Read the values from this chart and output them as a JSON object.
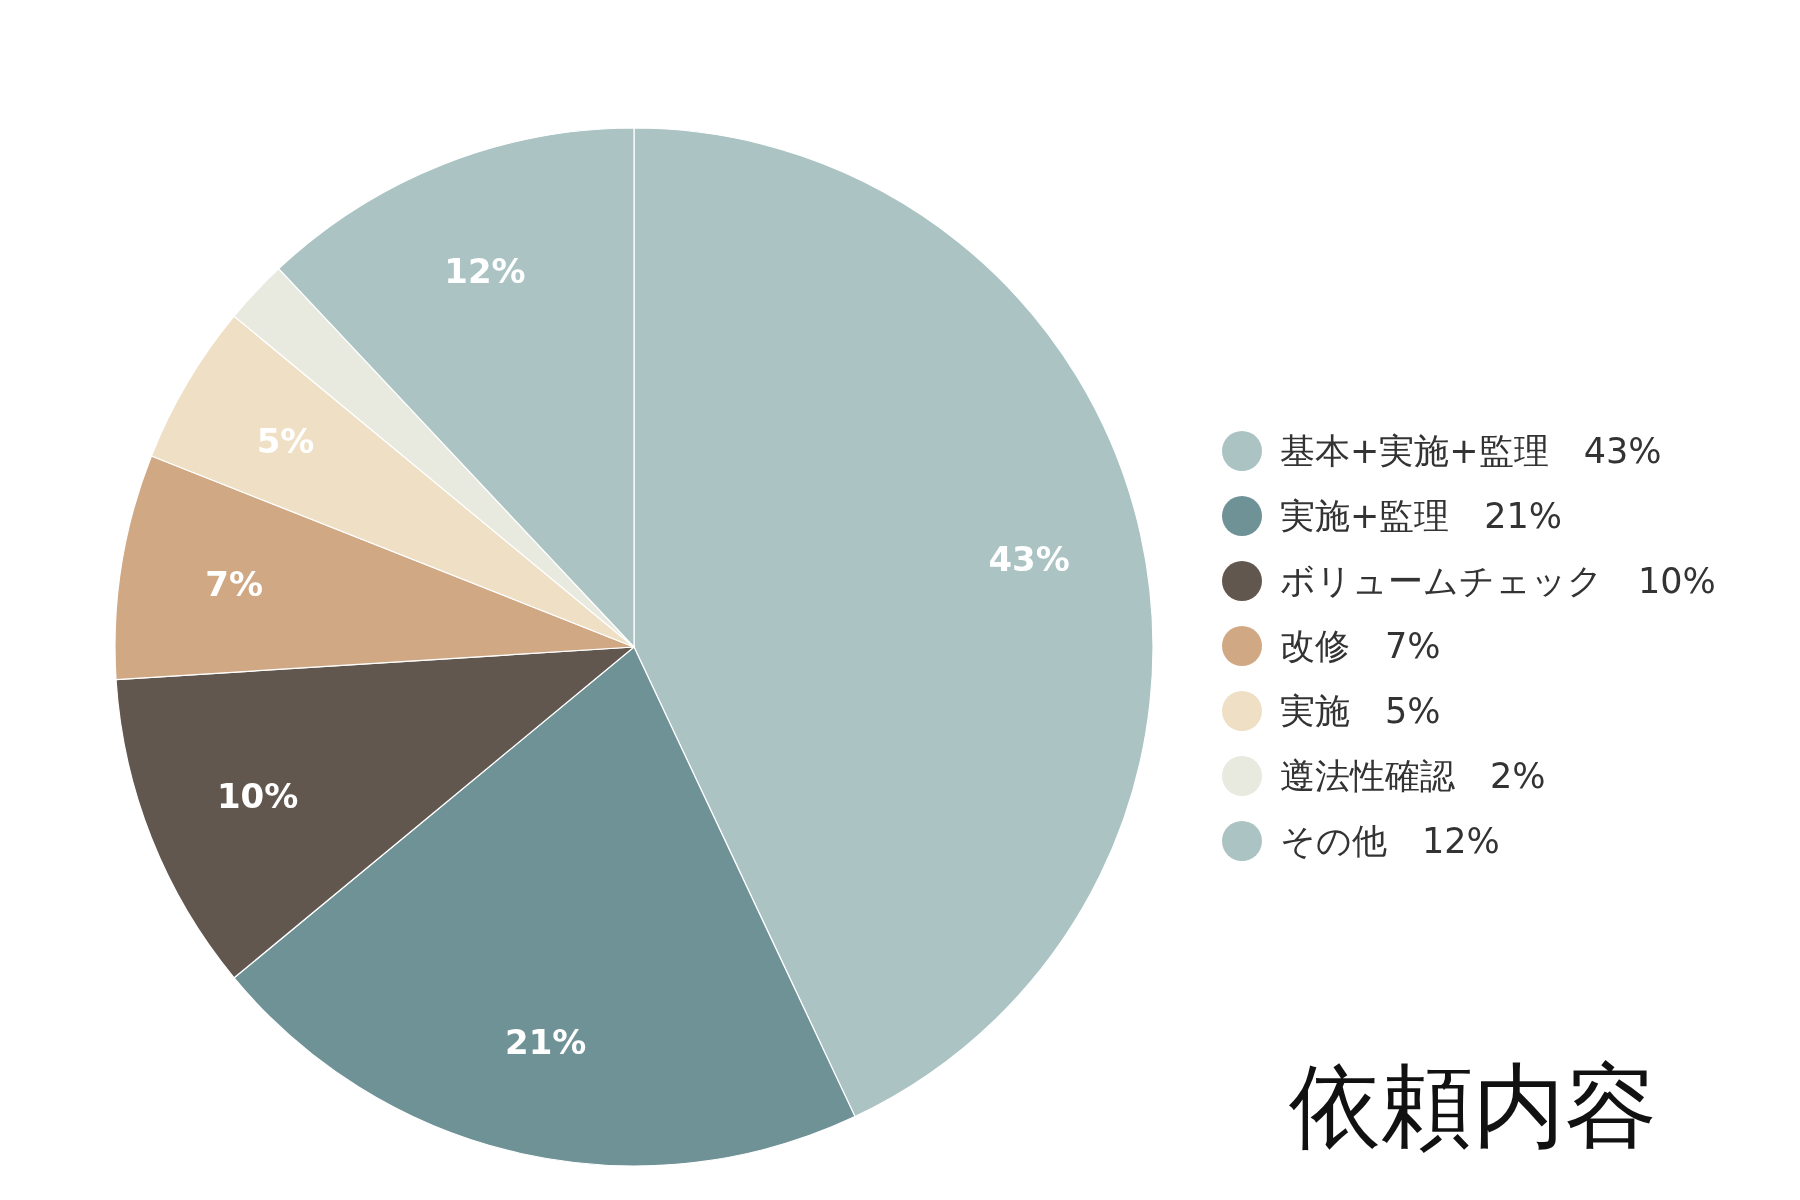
{
  "chart_data": {
    "type": "pie",
    "title": "依頼内容",
    "categories": [
      "基本+実施+監理",
      "実施+監理",
      "ボリュームチェック",
      "改修",
      "実施",
      "遵法性確認",
      "その他"
    ],
    "values": [
      43,
      21,
      10,
      7,
      5,
      2,
      12
    ],
    "value_labels": [
      "43%",
      "21%",
      "10%",
      "7%",
      "5%",
      "2%",
      "12%"
    ],
    "colors": [
      "#abc3c3",
      "#6f9297",
      "#62574e",
      "#d1a884",
      "#eedfc5",
      "#e8eadf",
      "#abc3c3"
    ],
    "legend": "right"
  }
}
